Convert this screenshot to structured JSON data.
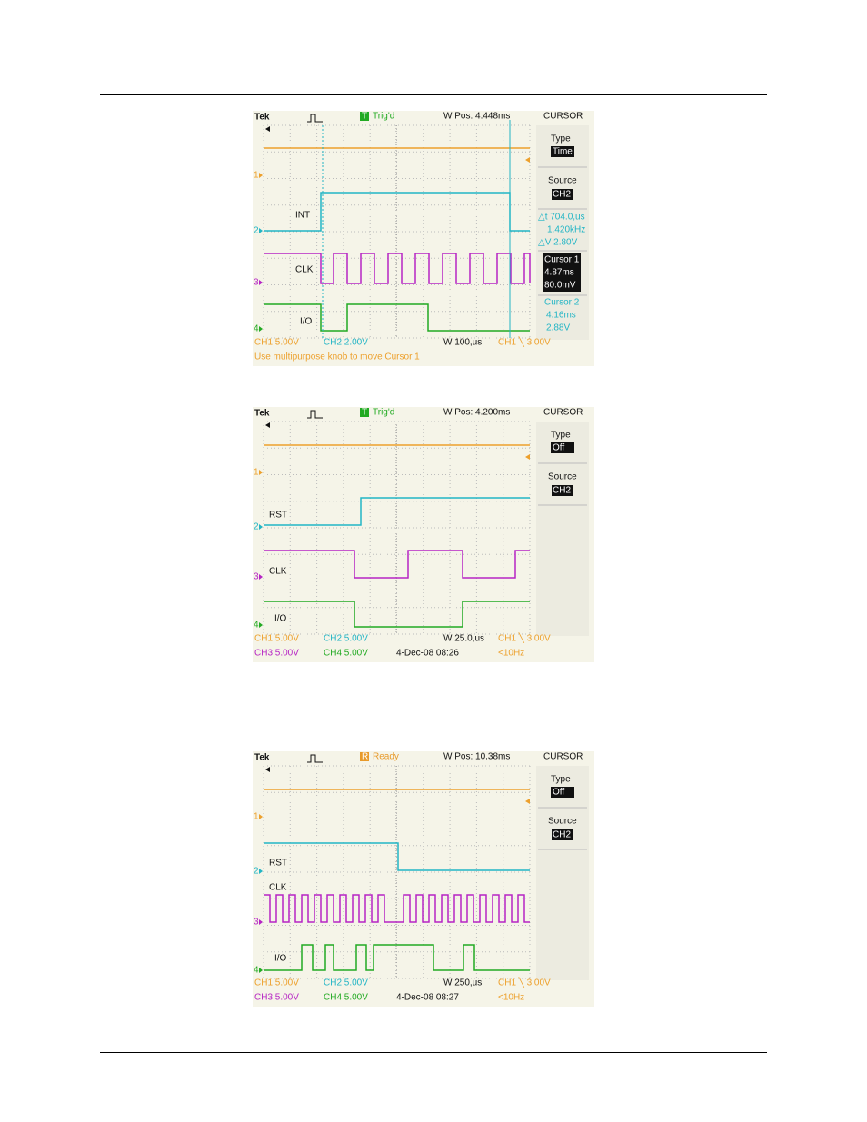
{
  "scopes": [
    {
      "brand": "Tek",
      "trigger_icon": "T",
      "trigger_state": "Trig'd",
      "trigger_color": "#22aa22",
      "wpos": "W Pos: 4.448ms",
      "menu": "CURSOR",
      "type_label": "Type",
      "type_value": "Time",
      "source_label": "Source",
      "source_value": "CH2",
      "readouts": [
        "△t 704.0,us",
        "1.420kHz",
        "△V 2.80V"
      ],
      "cursor1": [
        "Cursor 1",
        "4.87ms",
        "80.0mV"
      ],
      "cursor2": [
        "Cursor 2",
        "4.16ms",
        "2.88V"
      ],
      "channel_markers": [
        "1",
        "2",
        "3",
        "4"
      ],
      "channel_labels": [
        "INT",
        "CLK",
        "I/O"
      ],
      "status_row": [
        "CH1  5.00V",
        "CH2  2.00V",
        "W 100,us",
        "CH1 ╲ 3.00V"
      ],
      "bottom_row": [
        "Use multipurpose knob to move Cursor 1"
      ]
    },
    {
      "brand": "Tek",
      "trigger_icon": "T",
      "trigger_state": "Trig'd",
      "trigger_color": "#22aa22",
      "wpos": "W Pos: 4.200ms",
      "menu": "CURSOR",
      "type_label": "Type",
      "type_value": "Off",
      "source_label": "Source",
      "source_value": "CH2",
      "channel_markers": [
        "1",
        "2",
        "3",
        "4"
      ],
      "channel_labels": [
        "RST",
        "CLK",
        "I/O"
      ],
      "status_row": [
        "CH1  5.00V",
        "CH2  5.00V",
        "W 25.0,us",
        "CH1 ╲ 3.00V"
      ],
      "bottom_row": [
        "CH3  5.00V",
        "CH4  5.00V",
        "4-Dec-08 08:26",
        "<10Hz"
      ]
    },
    {
      "brand": "Tek",
      "trigger_icon": "R",
      "trigger_state": "Ready",
      "trigger_color": "#e89a2a",
      "wpos": "W Pos: 10.38ms",
      "menu": "CURSOR",
      "type_label": "Type",
      "type_value": "Off",
      "source_label": "Source",
      "source_value": "CH2",
      "channel_markers": [
        "1",
        "2",
        "3",
        "4"
      ],
      "channel_labels": [
        "RST",
        "CLK",
        "I/O"
      ],
      "status_row": [
        "CH1  5.00V",
        "CH2  5.00V",
        "W 250,us",
        "CH1 ╲ 3.00V"
      ],
      "bottom_row": [
        "CH3  5.00V",
        "CH4  5.00V",
        "4-Dec-08 08:27",
        "<10Hz"
      ]
    }
  ]
}
